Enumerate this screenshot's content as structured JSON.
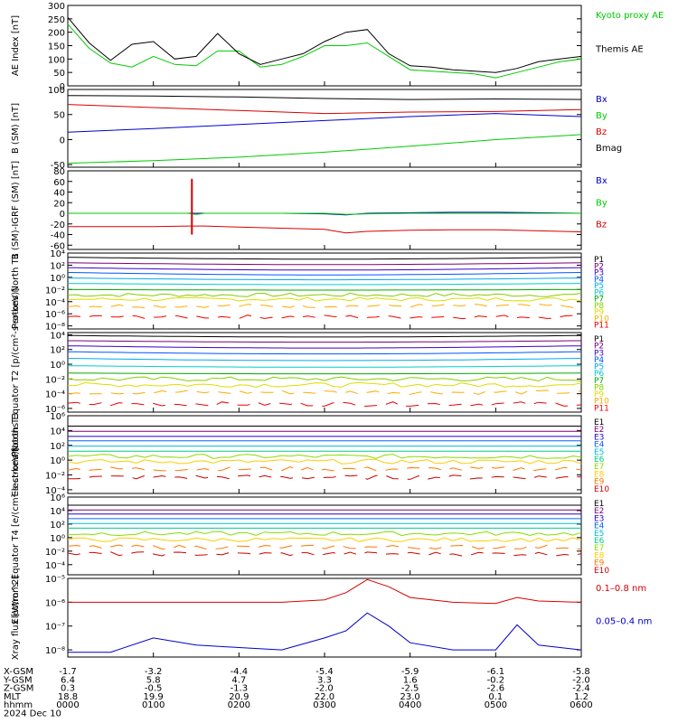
{
  "footer": {
    "rows": [
      {
        "label": "X-GSM",
        "values": [
          "-1.7",
          "-3.2",
          "-4.4",
          "-5.4",
          "-5.9",
          "-6.1",
          "-5.8"
        ]
      },
      {
        "label": "Y-GSM",
        "values": [
          "6.4",
          "5.8",
          "4.7",
          "3.3",
          "1.6",
          "-0.2",
          "-2.0"
        ]
      },
      {
        "label": "Z-GSM",
        "values": [
          "0.3",
          "-0.5",
          "-1.3",
          "-2.0",
          "-2.5",
          "-2.6",
          "-2.4"
        ]
      },
      {
        "label": "MLT",
        "values": [
          "18.8",
          "19.9",
          "20.9",
          "22.0",
          "23.0",
          "0.1",
          "1.2"
        ]
      },
      {
        "label": "hhmm",
        "values": [
          "0000",
          "0100",
          "0200",
          "0300",
          "0400",
          "0500",
          "0600"
        ]
      }
    ],
    "date": "2024 Dec 10"
  },
  "colors": {
    "black": "#000000",
    "red": "#d80000",
    "green": "#00cc00",
    "blue": "#0000cc"
  },
  "chart_data": [
    {
      "type": "line",
      "ylabel": "AE Index [nT]",
      "ylim": [
        0,
        300
      ],
      "yticks": [
        "0",
        "50",
        "100",
        "150",
        "200",
        "250",
        "300"
      ],
      "x": [
        0,
        0.25,
        0.5,
        0.75,
        1,
        1.25,
        1.5,
        1.75,
        2,
        2.25,
        2.5,
        2.75,
        3,
        3.25,
        3.5,
        3.75,
        4,
        4.25,
        4.5,
        4.75,
        5,
        5.25,
        5.5,
        5.75,
        6
      ],
      "series": [
        {
          "name": "Kyoto proxy AE",
          "color": "#00cc00",
          "values": [
            230,
            140,
            85,
            70,
            110,
            80,
            75,
            130,
            130,
            70,
            80,
            110,
            150,
            150,
            160,
            110,
            60,
            55,
            50,
            45,
            30,
            50,
            70,
            90,
            100
          ]
        },
        {
          "name": "Themis AE",
          "color": "#000000",
          "values": [
            255,
            160,
            95,
            155,
            165,
            100,
            110,
            195,
            120,
            80,
            100,
            120,
            165,
            200,
            210,
            120,
            75,
            70,
            60,
            55,
            50,
            65,
            90,
            100,
            110
          ]
        }
      ]
    },
    {
      "type": "line",
      "ylabel": "B (SM) [nT]",
      "ylim": [
        -55,
        100
      ],
      "yticks": [
        "-50",
        "0",
        "50",
        "100"
      ],
      "x": [
        0,
        1,
        2,
        3,
        4,
        5,
        6
      ],
      "series": [
        {
          "name": "Bx",
          "color": "#0000cc",
          "values": [
            15,
            22,
            30,
            38,
            46,
            52,
            46
          ]
        },
        {
          "name": "By",
          "color": "#00cc00",
          "values": [
            -47,
            -42,
            -35,
            -25,
            -13,
            0,
            10
          ]
        },
        {
          "name": "Bz",
          "color": "#d80000",
          "values": [
            70,
            64,
            58,
            52,
            55,
            56,
            60
          ]
        },
        {
          "name": "Bmag",
          "color": "#000000",
          "values": [
            88,
            87,
            85,
            82,
            80,
            81,
            80
          ]
        }
      ]
    },
    {
      "type": "line",
      "ylabel": "B (SM)-IGRF (SM) [nT]",
      "ylim": [
        -68,
        80
      ],
      "yticks": [
        "-60",
        "-40",
        "-20",
        "0",
        "20",
        "40",
        "60",
        "80"
      ],
      "x": [
        0,
        0.5,
        1,
        1.4,
        1.5,
        1.6,
        2,
        2.5,
        3,
        3.25,
        3.5,
        4,
        4.5,
        5,
        5.5,
        6
      ],
      "series": [
        {
          "name": "Bx",
          "color": "#0000cc",
          "values": [
            0,
            0,
            0,
            0,
            0,
            0,
            0,
            0,
            -1,
            -3,
            0,
            1,
            2,
            2,
            1,
            0
          ]
        },
        {
          "name": "By",
          "color": "#00cc00",
          "values": [
            0,
            0,
            0,
            0,
            -2,
            0,
            0,
            0,
            0,
            -2,
            -1,
            0,
            0,
            0,
            0,
            0
          ]
        },
        {
          "name": "Bz",
          "color": "#d80000",
          "values": [
            -25,
            -25,
            -25,
            -24,
            -24,
            -24,
            -26,
            -28,
            -30,
            -37,
            -34,
            -32,
            -31,
            -31,
            -33,
            -35
          ]
        }
      ],
      "spike": {
        "x": 1.45,
        "ymin": -40,
        "ymax": 65
      }
    },
    {
      "type": "line",
      "ylabel": "Protons North T1",
      "yscale": "log",
      "ylim": [
        -8.5,
        4
      ],
      "yticks": [
        "10⁴",
        "10²",
        "10⁰",
        "10⁻²",
        "10⁻⁴",
        "10⁻⁶",
        "10⁻⁸"
      ],
      "channels": [
        "P1",
        "P2",
        "P3",
        "P4",
        "P5",
        "P6",
        "P7",
        "P8",
        "P9",
        "P10",
        "P11"
      ],
      "channel_colors": [
        "#000000",
        "#7a007a",
        "#3a00cc",
        "#0055ff",
        "#00aaee",
        "#00cccc",
        "#00aa00",
        "#88cc00",
        "#dddd00",
        "#ffaa00",
        "#ee0000"
      ],
      "levels": [
        3.3,
        2.4,
        1.6,
        0.8,
        -0.1,
        -1.0,
        -2.0,
        -2.9,
        -3.6,
        -4.7,
        -6.5
      ],
      "mid_dips": [
        0.3,
        0.3,
        0.4,
        0.4,
        0.3,
        0.2,
        0.1,
        0,
        0,
        0,
        0
      ]
    },
    {
      "type": "line",
      "ylabel": "Protons Equator T2 [p/(cm²-s-sr-keV)]",
      "yscale": "log",
      "ylim": [
        -6.5,
        4.3
      ],
      "yticks": [
        "10⁴",
        "10²",
        "10⁰",
        "10⁻²",
        "10⁻⁴",
        "10⁻⁶"
      ],
      "channels": [
        "P1",
        "P2",
        "P3",
        "P4",
        "P5",
        "P6",
        "P7",
        "P8",
        "P9",
        "P10",
        "P11"
      ],
      "channel_colors": [
        "#000000",
        "#7a007a",
        "#3a00cc",
        "#0055ff",
        "#00aaee",
        "#00cccc",
        "#00aa00",
        "#88cc00",
        "#dddd00",
        "#ffaa00",
        "#ee0000"
      ],
      "levels": [
        3.9,
        3.2,
        2.5,
        1.7,
        0.8,
        -0.2,
        -1.2,
        -2.0,
        -2.8,
        -3.8,
        -5.4
      ],
      "mid_dips": [
        0.2,
        0.2,
        0.3,
        0.3,
        0.3,
        0.2,
        0.1,
        0,
        0,
        0,
        0
      ]
    },
    {
      "type": "line",
      "ylabel": "Electrons North T3",
      "yscale": "log",
      "ylim": [
        -4.5,
        6
      ],
      "yticks": [
        "10⁶",
        "10⁴",
        "10²",
        "10⁰",
        "10⁻²",
        "10⁻⁴"
      ],
      "channels": [
        "E1",
        "E2",
        "E3",
        "E4",
        "E5",
        "E6",
        "E7",
        "E8",
        "E9",
        "E10"
      ],
      "channel_colors": [
        "#000000",
        "#7a007a",
        "#2200cc",
        "#0066ff",
        "#00bbdd",
        "#00cc88",
        "#88dd00",
        "#ffcc00",
        "#ff7700",
        "#cc0000"
      ],
      "levels": [
        4.6,
        3.9,
        3.2,
        2.6,
        1.9,
        1.2,
        0.5,
        -0.2,
        -1.2,
        -2.3
      ],
      "mid_dips": [
        0,
        0,
        0,
        0,
        0,
        0,
        0,
        0,
        0,
        0
      ]
    },
    {
      "type": "line",
      "ylabel": "Electrons Equator T4 [e/(cm²-s-sr-keV)]",
      "yscale": "log",
      "ylim": [
        -5.5,
        6
      ],
      "yticks": [
        "10⁶",
        "10⁴",
        "10²",
        "10⁰",
        "10⁻²",
        "10⁻⁴"
      ],
      "channels": [
        "E1",
        "E2",
        "E3",
        "E4",
        "E5",
        "E6",
        "E7",
        "E8",
        "E9",
        "E10"
      ],
      "channel_colors": [
        "#000000",
        "#7a007a",
        "#2200cc",
        "#0066ff",
        "#00bbdd",
        "#00cc88",
        "#88dd00",
        "#ffcc00",
        "#ff7700",
        "#cc0000"
      ],
      "levels": [
        4.8,
        4.1,
        3.5,
        2.8,
        2.1,
        1.4,
        0.6,
        -0.3,
        -1.4,
        -2.4
      ],
      "mid_dips": [
        0,
        0,
        0,
        0,
        0,
        0,
        0,
        0,
        0,
        0
      ]
    },
    {
      "type": "line",
      "ylabel": "Xray flux [W/m^2]",
      "yscale": "log",
      "ylim": [
        -8.3,
        -5
      ],
      "yticks": [
        "10⁻⁵",
        "10⁻⁶",
        "10⁻⁷",
        "10⁻⁸"
      ],
      "x": [
        0,
        0.5,
        1,
        1.5,
        2,
        2.5,
        3,
        3.25,
        3.5,
        3.75,
        4,
        4.5,
        5,
        5.25,
        5.5,
        6
      ],
      "series": [
        {
          "name": "0.1–0.8 nm",
          "color": "#d80000",
          "values": [
            -6.0,
            -6.0,
            -6.0,
            -6.0,
            -6.0,
            -6.0,
            -5.9,
            -5.6,
            -5.05,
            -5.35,
            -5.8,
            -6.0,
            -6.05,
            -5.8,
            -5.95,
            -6.0
          ]
        },
        {
          "name": "0.05–0.4 nm",
          "color": "#0000cc",
          "values": [
            -8.1,
            -8.1,
            -7.5,
            -7.8,
            -7.9,
            -8.0,
            -7.5,
            -7.2,
            -6.45,
            -7.0,
            -7.7,
            -8.0,
            -8.0,
            -6.95,
            -7.8,
            -8.0
          ]
        }
      ]
    }
  ]
}
